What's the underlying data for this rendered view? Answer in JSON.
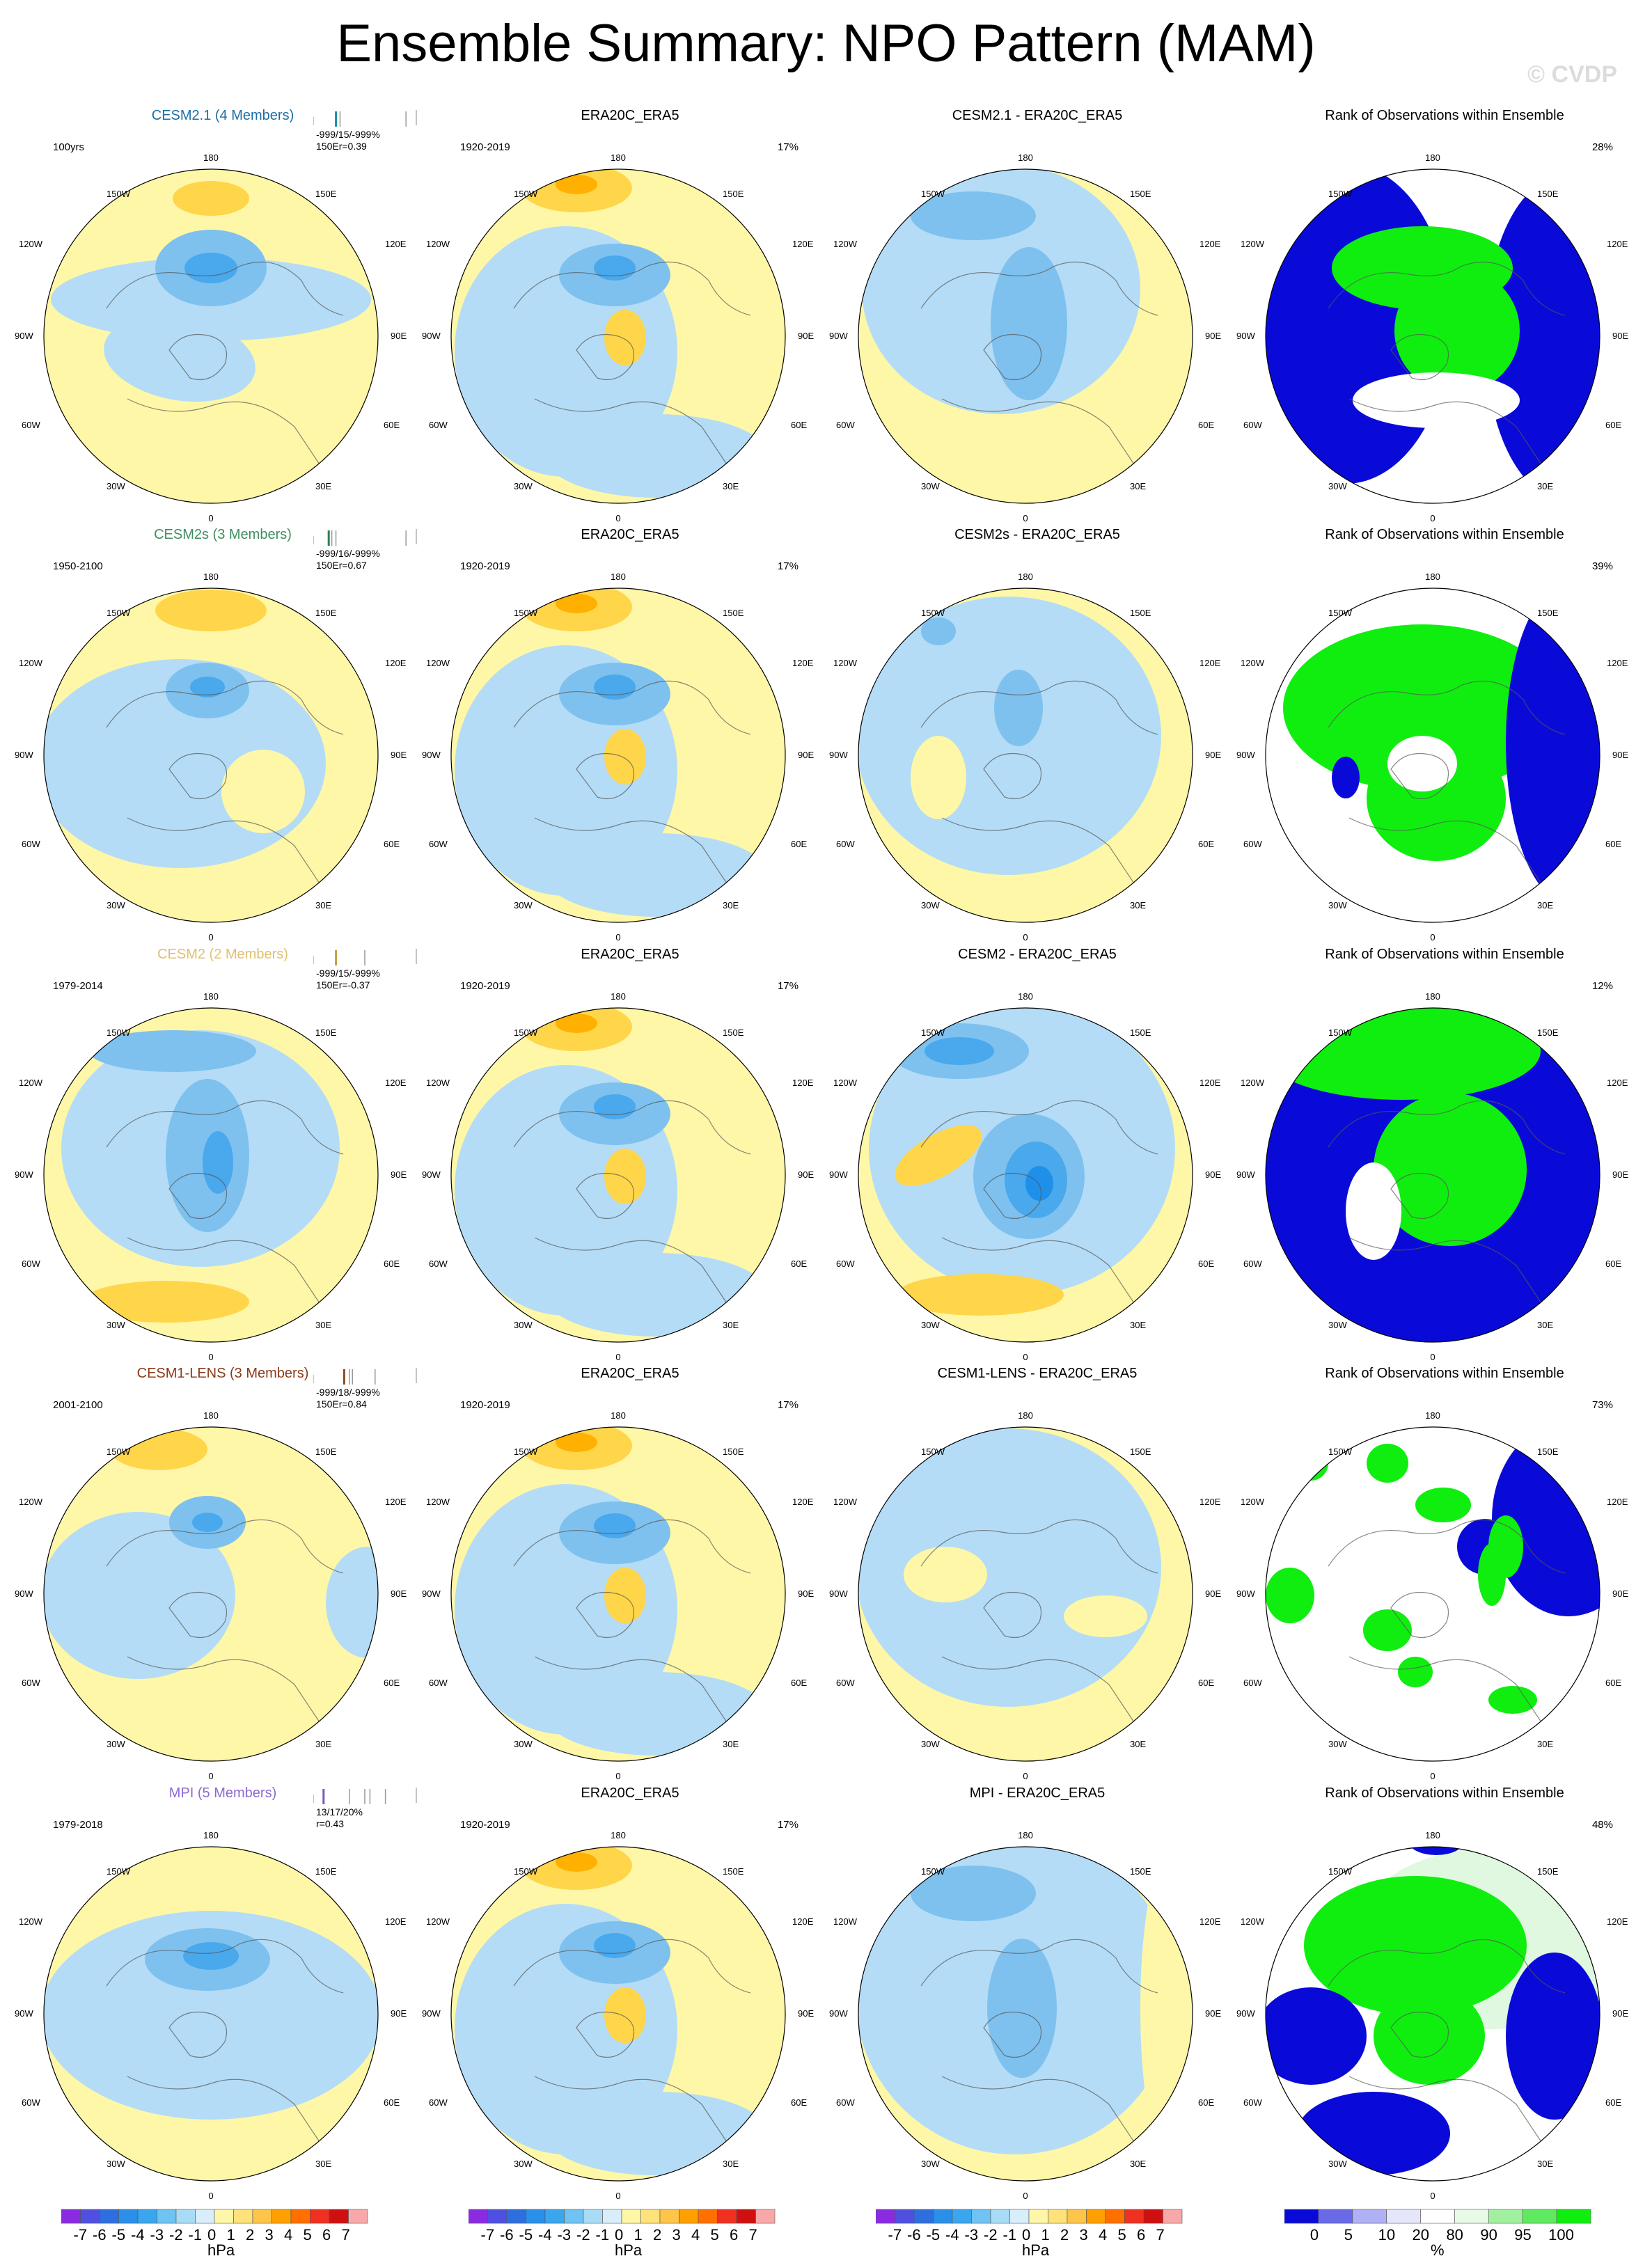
{
  "title": "Ensemble Summary: NPO Pattern (MAM)",
  "copyright": "© CVDP",
  "lon_labels": [
    "180",
    "150E",
    "120E",
    "90E",
    "60E",
    "30E",
    "0",
    "30W",
    "60W",
    "90W",
    "120W",
    "150W"
  ],
  "colors": {
    "pos1": "#fff7a8",
    "pos2": "#ffd54a",
    "pos3": "#ffb000",
    "pos4": "#ff8a00",
    "neg1": "#b4dcf6",
    "neg2": "#7ec1ef",
    "neg3": "#4aa8ec",
    "neg4": "#1e90ea",
    "rank_low": "#0a0ad8",
    "rank_high": "#10ee10",
    "rank_mid": "#ffffff",
    "rank_faint": "#dff8df"
  },
  "rows": [
    {
      "model": {
        "title": "CESM2.1 (4 Members)",
        "title_color": "#1b6fa6",
        "left": "100yrs",
        "stats1": "-999/15/-999%",
        "stats2": "150Er=0.39",
        "tick_color": "#1b8fa6",
        "ticks": [
          0.22,
          0.26,
          0.9
        ]
      },
      "obs": {
        "title": "ERA20C_ERA5",
        "left": "1920-2019",
        "right": "17%"
      },
      "diff": {
        "title": "CESM2.1 - ERA20C_ERA5"
      },
      "rank": {
        "title": "Rank of Observations within Ensemble",
        "right": "28%"
      }
    },
    {
      "model": {
        "title": "CESM2s (3 Members)",
        "title_color": "#3f8f5f",
        "left": "1950-2100",
        "stats1": "-999/16/-999%",
        "stats2": "150Er=0.67",
        "tick_color": "#2f7f4f",
        "ticks": [
          0.15,
          0.18,
          0.22,
          0.9
        ]
      },
      "obs": {
        "title": "ERA20C_ERA5",
        "left": "1920-2019",
        "right": "17%"
      },
      "diff": {
        "title": "CESM2s - ERA20C_ERA5"
      },
      "rank": {
        "title": "Rank of Observations within Ensemble",
        "right": "39%"
      }
    },
    {
      "model": {
        "title": "CESM2 (2 Members)",
        "title_color": "#e0c070",
        "left": "1979-2014",
        "stats1": "-999/15/-999%",
        "stats2": "150Er=-0.37",
        "tick_color": "#c7a040",
        "ticks": [
          0.22,
          0.5
        ]
      },
      "obs": {
        "title": "ERA20C_ERA5",
        "left": "1920-2019",
        "right": "17%"
      },
      "diff": {
        "title": "CESM2 - ERA20C_ERA5"
      },
      "rank": {
        "title": "Rank of Observations within Ensemble",
        "right": "12%"
      }
    },
    {
      "model": {
        "title": "CESM1-LENS (3 Members)",
        "title_color": "#8b3a1a",
        "left": "2001-2100",
        "stats1": "-999/18/-999%",
        "stats2": "150Er=0.84",
        "tick_color": "#8b4a1a",
        "ticks": [
          0.3,
          0.35,
          0.38,
          0.6
        ]
      },
      "obs": {
        "title": "ERA20C_ERA5",
        "left": "1920-2019",
        "right": "17%"
      },
      "diff": {
        "title": "CESM1-LENS - ERA20C_ERA5"
      },
      "rank": {
        "title": "Rank of Observations within Ensemble",
        "right": "73%"
      }
    },
    {
      "model": {
        "title": "MPI (5 Members)",
        "title_color": "#8a6ad0",
        "left": "1979-2018",
        "stats1": "13/17/20%",
        "stats2": "r=0.43",
        "tick_color": "#7a5ac0",
        "ticks": [
          0.1,
          0.35,
          0.5,
          0.55,
          0.7
        ]
      },
      "obs": {
        "title": "ERA20C_ERA5",
        "left": "1920-2019",
        "right": "17%"
      },
      "diff": {
        "title": "MPI - ERA20C_ERA5"
      },
      "rank": {
        "title": "Rank of Observations within Ensemble",
        "right": "48%"
      }
    }
  ],
  "colorbar": {
    "labels": [
      "-7",
      "-6",
      "-5",
      "-4",
      "-3",
      "-2",
      "-1",
      "0",
      "1",
      "2",
      "3",
      "4",
      "5",
      "6",
      "7"
    ],
    "colors": [
      "#8a2be2",
      "#5050e0",
      "#2e6fe0",
      "#2a8fe8",
      "#3aa6ee",
      "#6ec3f2",
      "#a8dcf6",
      "#d8eefa",
      "#fff7a8",
      "#ffe27a",
      "#ffc54a",
      "#ffa000",
      "#ff7000",
      "#f03020",
      "#d01010",
      "#f8a8a8"
    ],
    "unit": "hPa"
  },
  "rank_colorbar": {
    "labels": [
      "0",
      "5",
      "10",
      "20",
      "80",
      "90",
      "95",
      "100"
    ],
    "colors": [
      "#0a0ad8",
      "#6a6ae8",
      "#b0b0f4",
      "#e6e6fa",
      "#ffffff",
      "#e6fae6",
      "#a0f0a0",
      "#60ea60",
      "#10ee10"
    ],
    "unit": "%"
  },
  "chart_data": {
    "type": "heatmap",
    "title": "Ensemble Summary: NPO Pattern (MAM)",
    "field_units": "hPa",
    "levels": [
      -7,
      -6,
      -5,
      -4,
      -3,
      -2,
      -1,
      0,
      1,
      2,
      3,
      4,
      5,
      6,
      7
    ],
    "rank_levels_percent": [
      0,
      5,
      10,
      20,
      80,
      90,
      95,
      100
    ],
    "panels": [
      {
        "row": 1,
        "model": "CESM2.1 (4 Members)",
        "period": "100yrs",
        "pattern_corr": 0.39,
        "obs_pct": "17%",
        "rank_pct": "28%"
      },
      {
        "row": 2,
        "model": "CESM2s (3 Members)",
        "period": "1950-2100",
        "pattern_corr": 0.67,
        "obs_pct": "17%",
        "rank_pct": "39%"
      },
      {
        "row": 3,
        "model": "CESM2 (2 Members)",
        "period": "1979-2014",
        "pattern_corr": -0.37,
        "obs_pct": "17%",
        "rank_pct": "12%"
      },
      {
        "row": 4,
        "model": "CESM1-LENS (3 Members)",
        "period": "2001-2100",
        "pattern_corr": 0.84,
        "obs_pct": "17%",
        "rank_pct": "73%"
      },
      {
        "row": 5,
        "model": "MPI (5 Members)",
        "period": "1979-2018",
        "pattern_corr": 0.43,
        "obs_pct": "17%",
        "rank_pct": "48%"
      }
    ],
    "observations": {
      "name": "ERA20C_ERA5",
      "period": "1920-2019"
    }
  }
}
